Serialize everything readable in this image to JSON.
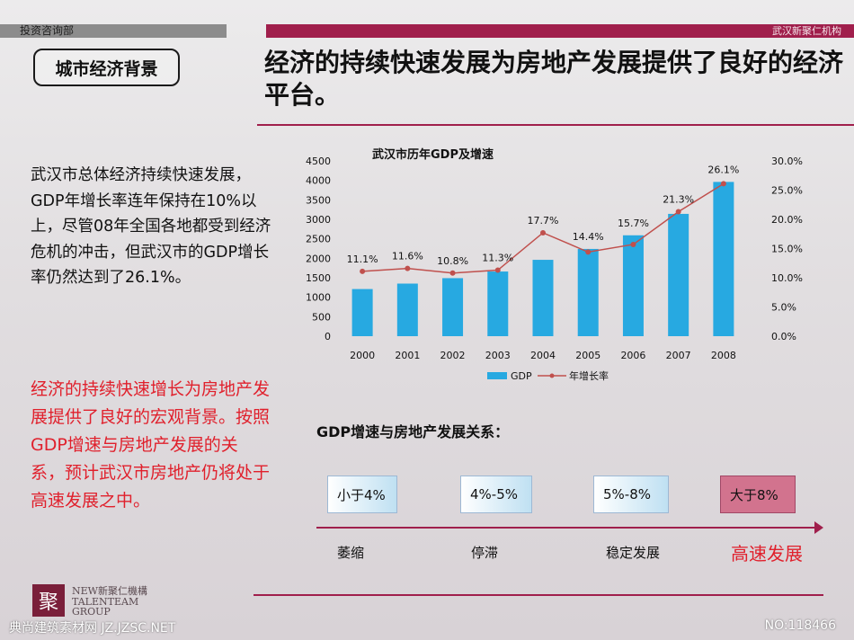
{
  "header": {
    "left_label": "投资咨询部",
    "right_label": "武汉新聚仁机构"
  },
  "section_title": "城市经济背景",
  "headline": "经济的持续快速发展为房地产发展提供了良好的经济平台。",
  "paragraph1": "武汉市总体经济持续快速发展，GDP年增长率连年保持在10%以上，尽管08年全国各地都受到经济危机的冲击，但武汉市的GDP增长率仍然达到了26.1%。",
  "paragraph2": "经济的持续快速增长为房地产发展提供了良好的宏观背景。按照GDP增速与房地产发展的关系，预计武汉市房地产仍将处于高速发展之中。",
  "chart_data": {
    "type": "bar",
    "title": "武汉市历年GDP及增速",
    "categories": [
      "2000",
      "2001",
      "2002",
      "2003",
      "2004",
      "2005",
      "2006",
      "2007",
      "2008"
    ],
    "series": [
      {
        "name": "GDP",
        "type": "bar",
        "axis": "left",
        "values": [
          1210,
          1350,
          1490,
          1660,
          1960,
          2240,
          2590,
          3140,
          3960
        ]
      },
      {
        "name": "年增长率",
        "type": "line",
        "axis": "right",
        "values": [
          11.1,
          11.6,
          10.8,
          11.3,
          17.7,
          14.4,
          15.7,
          21.3,
          26.1
        ]
      }
    ],
    "data_labels": [
      "11.1%",
      "11.6%",
      "10.8%",
      "11.3%",
      "17.7%",
      "14.4%",
      "15.7%",
      "21.3%",
      "26.1%"
    ],
    "y_left": {
      "min": 0,
      "max": 4500,
      "ticks": [
        "0",
        "500",
        "1000",
        "1500",
        "2000",
        "2500",
        "3000",
        "3500",
        "4000",
        "4500"
      ]
    },
    "y_right": {
      "min": 0,
      "max": 30,
      "ticks": [
        "0.0%",
        "5.0%",
        "10.0%",
        "15.0%",
        "20.0%",
        "25.0%",
        "30.0%"
      ]
    },
    "legend_position": "bottom",
    "grid": false,
    "colors": {
      "bar": "#27a9e1",
      "line": "#c0504d"
    }
  },
  "relation": {
    "title": "GDP增速与房地产发展关系：",
    "ranges": [
      "小于4%",
      "4%-5%",
      "5%-8%",
      "大于8%"
    ],
    "stages": [
      "萎缩",
      "停滞",
      "稳定发展",
      "高速发展"
    ]
  },
  "logo": {
    "mark": "聚",
    "line1": "NEW新聚仁機構",
    "line2": "TALENTEAM",
    "line3": "GROUP"
  },
  "watermark": {
    "left": "典尚建筑素材网 JZ.JZSC.NET",
    "right": "NO:118466"
  }
}
